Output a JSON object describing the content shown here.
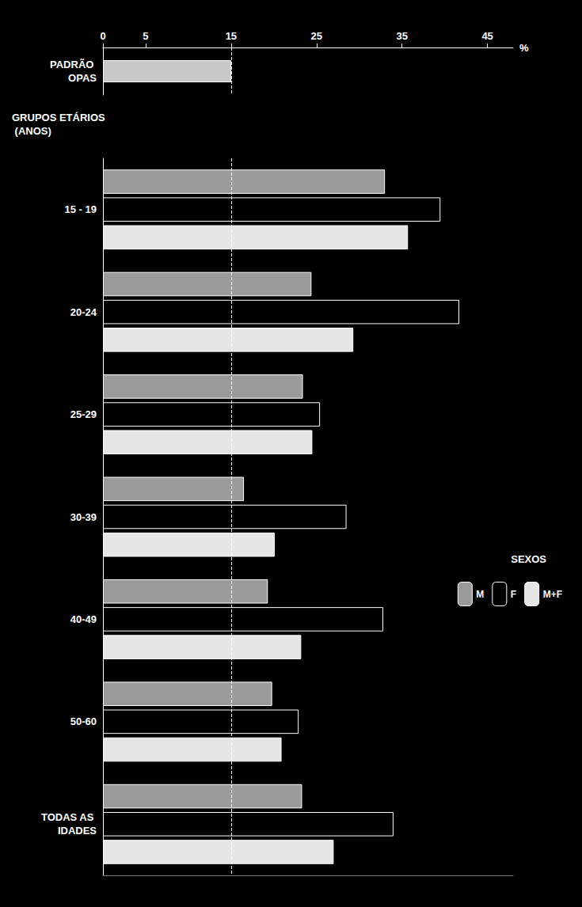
{
  "chart_data": {
    "type": "bar",
    "orientation": "horizontal",
    "grid": false,
    "legend": "right",
    "legend_title": "SEXOS",
    "xlabel": "%",
    "ylabel": "GRUPOS ETÁRIOS (ANOS)",
    "xlim": [
      0,
      48
    ],
    "xticks": [
      0,
      5,
      15,
      25,
      35,
      45
    ],
    "reference": {
      "label": "PADRÃO OPAS",
      "value": 15,
      "color": "#c8c8c8"
    },
    "categories": [
      "15 - 19",
      "20-24",
      "25-29",
      "30-39",
      "40-49",
      "50-60",
      "TODAS AS IDADES"
    ],
    "series": [
      {
        "name": "M",
        "color": "#9a9a9a",
        "values": [
          33.0,
          24.4,
          23.4,
          16.5,
          19.3,
          19.8,
          23.3
        ]
      },
      {
        "name": "F",
        "color": "#000000",
        "values": [
          39.5,
          41.7,
          25.4,
          28.5,
          32.8,
          22.9,
          34.0
        ]
      },
      {
        "name": "M+F",
        "color": "#e6e6e6",
        "values": [
          35.7,
          29.3,
          24.5,
          20.1,
          23.2,
          20.9,
          27.0
        ]
      }
    ]
  }
}
